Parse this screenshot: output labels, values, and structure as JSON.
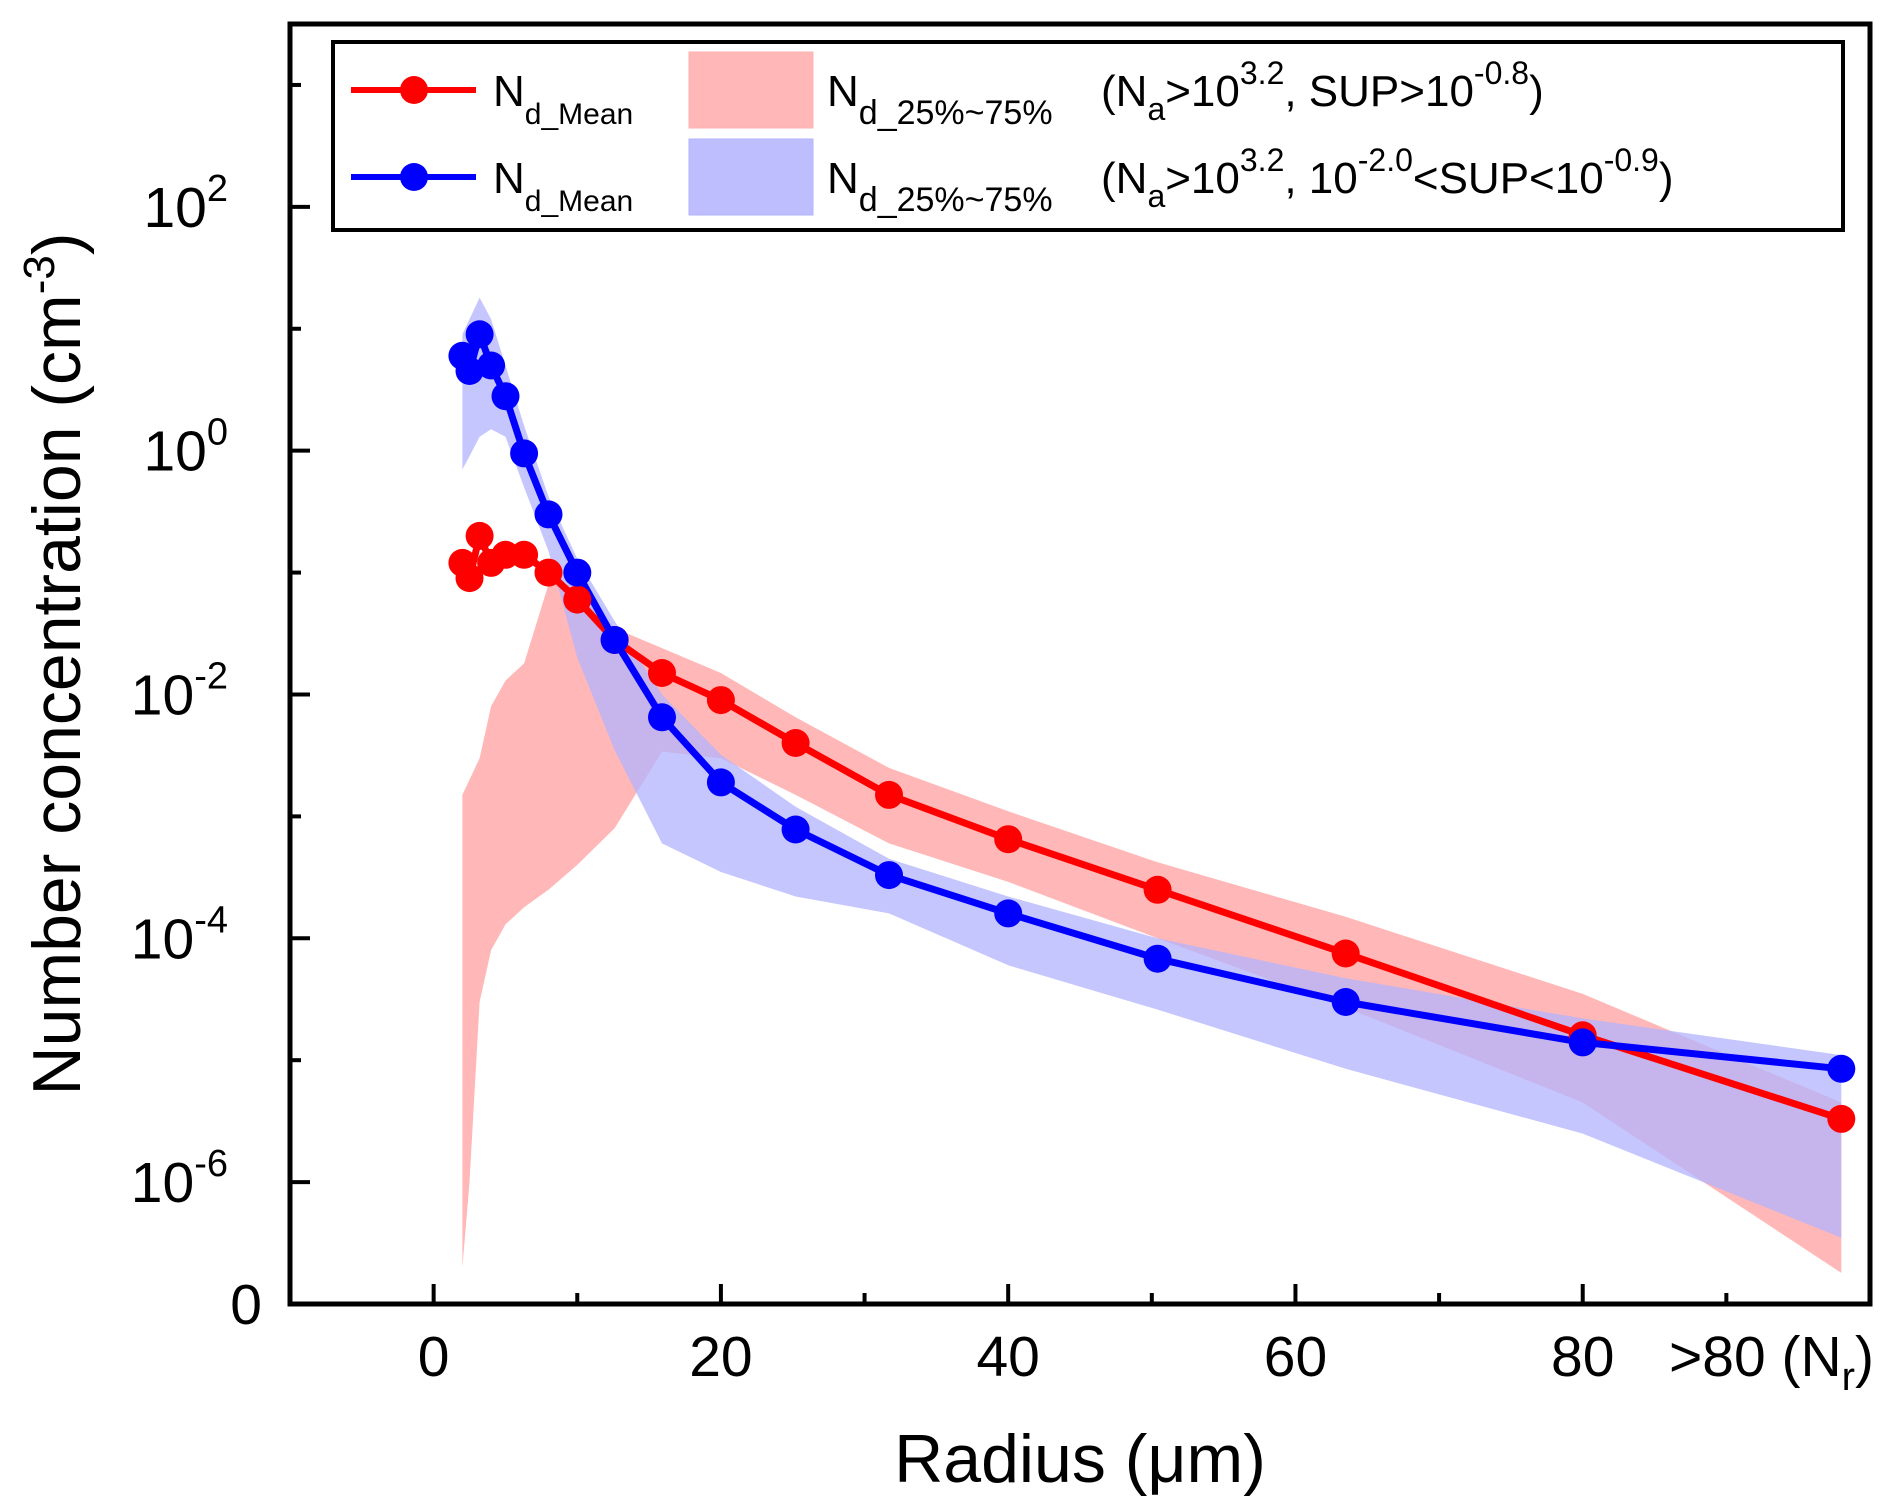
{
  "chart_data": {
    "type": "line",
    "xlabel": "Radius (μm)",
    "ylabel": "Number concentration (cm",
    "ylabel_sup": "-3",
    "ylabel_close": ")",
    "yscale": "log",
    "xlim": [
      -10,
      100
    ],
    "ylim_log10": [
      -7,
      3.5
    ],
    "x_ticks": [
      {
        "value": 0,
        "label": "0"
      },
      {
        "value": 20,
        "label": "20"
      },
      {
        "value": 40,
        "label": "40"
      },
      {
        "value": 60,
        "label": "60"
      },
      {
        "value": 80,
        "label": "80"
      }
    ],
    "x_extra_label": {
      "value": 93,
      "text": ">80 (N",
      "sub": "r",
      "close": ")"
    },
    "y_ticks": [
      {
        "log": 2,
        "base": "10",
        "exp": "2"
      },
      {
        "log": 0,
        "base": "10",
        "exp": "0"
      },
      {
        "log": -2,
        "base": "10",
        "exp": "-2"
      },
      {
        "log": -4,
        "base": "10",
        "exp": "-4"
      },
      {
        "log": -6,
        "base": "10",
        "exp": "-6"
      }
    ],
    "y_zero_label": {
      "log": -7,
      "text": "0"
    },
    "series": [
      {
        "name": "N_d_Mean (N_a>10^3.2, SUP>10^-0.8)",
        "color": "#ff0000",
        "band_color": "#ffb3b3",
        "x": [
          2,
          2.5,
          3.2,
          4,
          5,
          6.3,
          8,
          10,
          12.6,
          15.9,
          20,
          25.2,
          31.7,
          40,
          50.4,
          63.5,
          80,
          98
        ],
        "y": [
          0.12,
          0.09,
          0.2,
          0.12,
          0.14,
          0.14,
          0.1,
          0.06,
          0.028,
          0.015,
          0.009,
          0.004,
          0.0015,
          0.00065,
          0.00025,
          7.5e-05,
          1.6e-05,
          3.3e-06
        ],
        "band_low": [
          2e-07,
          1e-06,
          3e-05,
          8e-05,
          0.00013,
          0.00018,
          0.00025,
          0.0004,
          0.0008,
          0.0034,
          0.003,
          0.0015,
          0.0006,
          0.00029,
          0.0001,
          2.7e-05,
          4.5e-06,
          1.8e-07
        ],
        "band_high": [
          0.0015,
          0.002,
          0.003,
          0.008,
          0.013,
          0.018,
          0.08,
          0.08,
          0.035,
          0.024,
          0.015,
          0.0065,
          0.0025,
          0.0011,
          0.00042,
          0.00015,
          3.5e-05,
          4.5e-06
        ]
      },
      {
        "name": "N_d_Mean (N_a>10^3.2, 10^-2.0<SUP<10^-0.9)",
        "color": "#0000ff",
        "band_color": "#b3b3ff",
        "x": [
          2,
          2.5,
          3.2,
          4,
          5,
          6.3,
          8,
          10,
          12.6,
          15.9,
          20,
          25.2,
          31.7,
          40,
          50.4,
          63.5,
          80,
          98
        ],
        "y": [
          6,
          4.5,
          9,
          5,
          2.8,
          0.95,
          0.3,
          0.1,
          0.028,
          0.0065,
          0.0019,
          0.00078,
          0.00033,
          0.00016,
          6.8e-05,
          3e-05,
          1.4e-05,
          8.5e-06
        ],
        "band_low": [
          0.7,
          0.9,
          1.3,
          1.5,
          1.3,
          0.5,
          0.15,
          0.02,
          0.0035,
          0.0006,
          0.00035,
          0.00022,
          0.00016,
          6e-05,
          2.6e-05,
          8.5e-06,
          2.5e-06,
          3.5e-07
        ],
        "band_high": [
          9,
          12,
          18,
          12,
          5,
          1.6,
          0.42,
          0.13,
          0.04,
          0.01,
          0.0032,
          0.0012,
          0.00045,
          0.00022,
          0.0001,
          4.7e-05,
          2.2e-05,
          1.1e-05
        ]
      }
    ],
    "legend": {
      "position": "top-right",
      "rows": [
        {
          "series": 0,
          "mean_label": "N",
          "mean_sub": "d_Mean",
          "band_label": "N",
          "band_sub": "d_25%~75%",
          "cond": [
            {
              "t": "(N"
            },
            {
              "t": "a",
              "s": "sub"
            },
            {
              "t": ">10"
            },
            {
              "t": "3.2",
              "s": "sup"
            },
            {
              "t": ", SUP>10"
            },
            {
              "t": "-0.8",
              "s": "sup"
            },
            {
              "t": ")"
            }
          ]
        },
        {
          "series": 1,
          "mean_label": "N",
          "mean_sub": "d_Mean",
          "band_label": "N",
          "band_sub": "d_25%~75%",
          "cond": [
            {
              "t": "(N"
            },
            {
              "t": "a",
              "s": "sub"
            },
            {
              "t": ">10"
            },
            {
              "t": "3.2",
              "s": "sup"
            },
            {
              "t": ", 10"
            },
            {
              "t": "-2.0",
              "s": "sup"
            },
            {
              "t": "<SUP<10"
            },
            {
              "t": "-0.9",
              "s": "sup"
            },
            {
              "t": ")"
            }
          ]
        }
      ]
    },
    "grid": false
  }
}
